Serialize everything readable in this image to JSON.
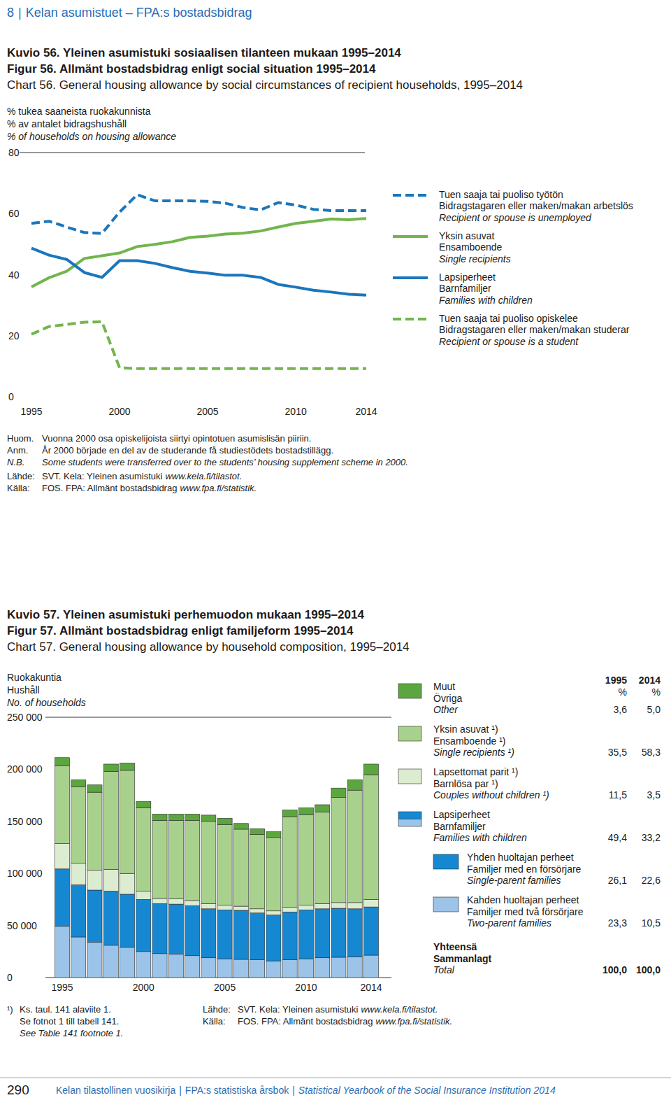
{
  "page": {
    "header": {
      "section": "8",
      "separator": "|",
      "text": "Kelan asumistuet – FPA:s bostadsbidrag"
    },
    "footer": {
      "page_number": "290",
      "separator": "|",
      "parts": [
        "Kelan tilastollinen vuosikirja",
        "FPA:s statistiska årsbok",
        "Statistical Yearbook of the Social Insurance Institution 2014"
      ]
    }
  },
  "chart_data": [
    {
      "type": "line",
      "title": "Kuvio 56. Yleinen asumistuki sosiaalisen tilanteen mukaan 1995–2014",
      "title_sv": "Figur 56. Allmänt bostadsbidrag enligt social situation 1995–2014",
      "title_en": "Chart 56. General housing allowance by social circumstances of recipient households, 1995–2014",
      "ylabel": "% tukea saaneista ruokakunnista",
      "ylabel_sv": "% av antalet bidragshushåll",
      "ylabel_en": "% of households on housing allowance",
      "x": [
        1995,
        1996,
        1997,
        1998,
        1999,
        2000,
        2001,
        2002,
        2003,
        2004,
        2005,
        2006,
        2007,
        2008,
        2009,
        2010,
        2011,
        2012,
        2013,
        2014
      ],
      "xlim": [
        1995,
        2014
      ],
      "xticks": [
        1995,
        2000,
        2005,
        2010,
        2014
      ],
      "ylim": [
        0,
        80
      ],
      "yticks": [
        0,
        20,
        40,
        60,
        80
      ],
      "grid": false,
      "legend": "right",
      "series": [
        {
          "name": "Tuen saaja tai puoliso työtön",
          "name_sv": "Bidragstagaren eller maken/makan arbetslös",
          "name_en": "Recipient or spouse is unemployed",
          "color": "#1b76bc",
          "line_style": "dashed",
          "values": [
            56.8,
            57.5,
            55.6,
            53.8,
            53.5,
            60.5,
            66.2,
            64.2,
            64.2,
            64.2,
            64.0,
            63.4,
            62.0,
            61.2,
            63.6,
            62.8,
            61.4,
            61.0,
            61.0,
            61.0
          ]
        },
        {
          "name": "Yksin asuvat",
          "name_sv": "Ensamboende",
          "name_en": "Single recipients",
          "color": "#72b54d",
          "line_style": "solid",
          "values": [
            36.0,
            39.0,
            41.1,
            45.3,
            46.2,
            47.1,
            49.2,
            49.9,
            50.8,
            52.2,
            52.6,
            53.3,
            53.6,
            54.3,
            55.6,
            56.8,
            57.5,
            58.2,
            58.0,
            58.4
          ]
        },
        {
          "name": "Lapsiperheet",
          "name_sv": "Barnfamiljer",
          "name_en": "Families with children",
          "color": "#1b76bc",
          "line_style": "solid",
          "values": [
            48.7,
            46.4,
            45.0,
            40.7,
            39.1,
            44.6,
            44.6,
            43.7,
            42.3,
            41.1,
            40.5,
            39.8,
            39.8,
            39.1,
            36.8,
            35.9,
            34.9,
            34.3,
            33.6,
            33.3
          ]
        },
        {
          "name": "Tuen saaja tai puoliso opiskelee",
          "name_sv": "Bidragstagaren eller maken/makan studerar",
          "name_en": "Recipient or spouse is a student",
          "color": "#72b54d",
          "line_style": "dashed",
          "values": [
            20.5,
            23.0,
            23.7,
            24.4,
            24.6,
            9.5,
            9.2,
            9.2,
            9.2,
            9.2,
            9.2,
            9.2,
            9.2,
            9.2,
            9.2,
            9.2,
            9.2,
            9.2,
            9.2,
            9.2
          ]
        }
      ],
      "notes": [
        {
          "lead": "Huom.",
          "text": "Vuonna 2000 osa opiskelijoista siirtyi opintotuen asumislisän piiriin."
        },
        {
          "lead": "Anm.",
          "text": "År 2000 började en del av de studerande få studiestödets bostadstillägg."
        },
        {
          "lead": "N.B.",
          "text": "Some students were transferred over to the students’ housing supplement scheme in 2000."
        }
      ],
      "sources": [
        {
          "lead": "Lähde:",
          "text": "SVT. Kela: Yleinen asumistuki",
          "url": "www.kela.fi/tilastot."
        },
        {
          "lead": "Källa:",
          "text": "FOS. FPA: Allmänt bostadsbidrag",
          "url": "www.fpa.fi/statistik."
        }
      ]
    },
    {
      "type": "bar",
      "stacked": true,
      "title": "Kuvio 57. Yleinen asumistuki perhemuodon mukaan 1995–2014",
      "title_sv": "Figur 57. Allmänt bostadsbidrag enligt familjeform 1995–2014",
      "title_en": "Chart 57. General housing allowance by household composition, 1995–2014",
      "ylabel": "Ruokakuntia",
      "ylabel_sv": "Hushåll",
      "ylabel_en": "No. of households",
      "categories": [
        "1995",
        null,
        null,
        null,
        null,
        "2000",
        null,
        null,
        null,
        null,
        "2005",
        null,
        null,
        null,
        null,
        "2010",
        null,
        null,
        null,
        "2014"
      ],
      "ylim": [
        0,
        250000
      ],
      "yticks": [
        0,
        {
          "value": 50000,
          "label": "50 000"
        },
        {
          "value": 100000,
          "label": "100 000"
        },
        {
          "value": 150000,
          "label": "150 000"
        },
        {
          "value": 200000,
          "label": "200 000"
        },
        {
          "value": 250000,
          "label": "250 000"
        }
      ],
      "grid": false,
      "legend": "right",
      "share_years": [
        "1995",
        "2014"
      ],
      "share_unit": "%",
      "series": [
        {
          "name": "Kahden huoltajan perheet",
          "name_sv": "Familjer med två försörjare",
          "name_en": "Two-parent families",
          "color": "#9cc3e8",
          "values": [
            49200,
            39000,
            34000,
            31000,
            29000,
            25000,
            23000,
            22500,
            21000,
            19000,
            18000,
            17500,
            17000,
            16000,
            17000,
            18000,
            19000,
            19500,
            20000,
            21500
          ],
          "shares": [
            23.3,
            10.5
          ],
          "share_labels": [
            "23,3",
            "10,5"
          ]
        },
        {
          "name": "Yhden huoltajan perheet",
          "name_sv": "Familjer med en försörjare",
          "name_en": "Single-parent families",
          "color": "#1688d2",
          "values": [
            55100,
            50000,
            50000,
            52000,
            51000,
            50000,
            48000,
            48000,
            48000,
            47000,
            47000,
            47000,
            45000,
            44000,
            46000,
            47000,
            47000,
            47000,
            46000,
            46300
          ],
          "shares": [
            26.1,
            22.6
          ],
          "share_labels": [
            "26,1",
            "22,6"
          ]
        },
        {
          "name": "Lapsettomat parit ¹)",
          "name_sv": "Barnlösa par ¹)",
          "name_en": "Couples without children ¹)",
          "color": "#dcecd0",
          "values": [
            24300,
            21000,
            19000,
            21000,
            20000,
            8000,
            5000,
            5000,
            5000,
            5000,
            4500,
            4000,
            4000,
            4000,
            4500,
            4500,
            5000,
            5500,
            6000,
            7200
          ],
          "shares": [
            11.5,
            3.5
          ],
          "share_labels": [
            "11,5",
            "3,5"
          ]
        },
        {
          "name": "Yksin asuvat ¹)",
          "name_sv": "Ensamboende ¹)",
          "name_en": "Single recipients ¹)",
          "color": "#a9d18e",
          "values": [
            75000,
            73000,
            75000,
            94000,
            99000,
            80000,
            75000,
            75500,
            77000,
            79000,
            77500,
            74000,
            71500,
            70500,
            87000,
            87000,
            88000,
            101000,
            108000,
            119800
          ],
          "shares": [
            35.5,
            58.3
          ],
          "share_labels": [
            "35,5",
            "58,3"
          ]
        },
        {
          "name": "Muut",
          "name_sv": "Övriga",
          "name_en": "Other",
          "color": "#5ca63f",
          "values": [
            7600,
            7000,
            7000,
            7000,
            7000,
            6000,
            6000,
            6000,
            6000,
            6000,
            6000,
            5500,
            5500,
            5500,
            6500,
            6500,
            7000,
            9000,
            10000,
            10200
          ],
          "shares": [
            3.6,
            5.0
          ],
          "share_labels": [
            "3,6",
            "5,0"
          ]
        }
      ],
      "group": {
        "name": "Lapsiperheet",
        "name_sv": "Barnfamiljer",
        "name_en": "Families with children",
        "members": [
          0,
          1
        ],
        "shares": [
          49.4,
          33.2
        ],
        "share_labels": [
          "49,4",
          "33,2"
        ]
      },
      "total": {
        "name": "Yhteensä",
        "name_sv": "Sammanlagt",
        "name_en": "Total",
        "shares": [
          100,
          100
        ],
        "share_labels": [
          "100,0",
          "100,0"
        ]
      },
      "footnote": {
        "mark": "¹)",
        "lines": [
          "Ks. taul. 141 alaviite 1.",
          "Se fotnot 1 till tabell 141.",
          "See Table 141 footnote 1."
        ]
      },
      "sources": [
        {
          "lead": "Lähde:",
          "text": "SVT. Kela: Yleinen asumistuki",
          "url": "www.kela.fi/tilastot."
        },
        {
          "lead": "Källa:",
          "text": "FOS. FPA: Allmänt bostadsbidrag",
          "url": "www.fpa.fi/statistik."
        }
      ]
    }
  ]
}
